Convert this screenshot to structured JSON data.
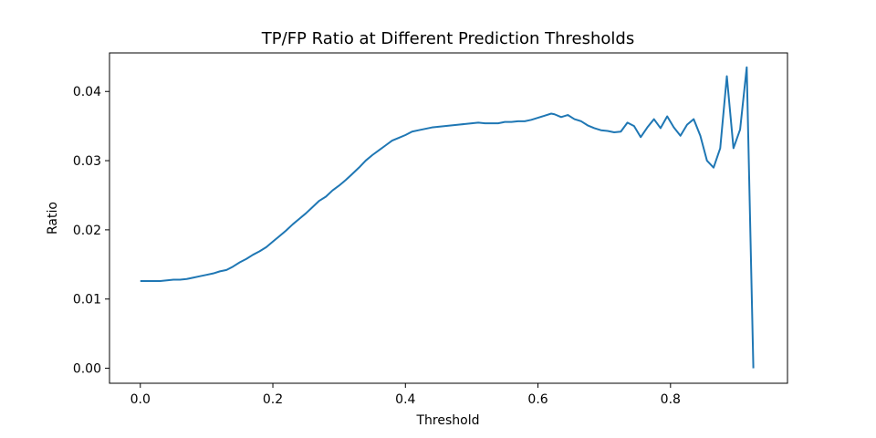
{
  "chart_data": {
    "type": "line",
    "title": "TP/FP Ratio at Different Prediction Thresholds",
    "xlabel": "Threshold",
    "ylabel": "Ratio",
    "xlim": [
      -0.0465,
      0.9765
    ],
    "ylim": [
      -0.00217,
      0.04557
    ],
    "xticks": [
      0.0,
      0.2,
      0.4,
      0.6,
      0.8
    ],
    "xtick_labels": [
      "0.0",
      "0.2",
      "0.4",
      "0.6",
      "0.8"
    ],
    "yticks": [
      0.0,
      0.01,
      0.02,
      0.03,
      0.04
    ],
    "ytick_labels": [
      "0.00",
      "0.01",
      "0.02",
      "0.03",
      "0.04"
    ],
    "grid": false,
    "legend": "none",
    "colors": {
      "line": "#1f77b4",
      "axes": "#000000",
      "background": "#ffffff"
    },
    "series": [
      {
        "values_x": [
          0.0,
          0.01,
          0.02,
          0.03,
          0.04,
          0.05,
          0.06,
          0.07,
          0.08,
          0.09,
          0.1,
          0.11,
          0.12,
          0.13,
          0.14,
          0.15,
          0.16,
          0.17,
          0.18,
          0.19,
          0.2,
          0.21,
          0.22,
          0.23,
          0.24,
          0.25,
          0.26,
          0.27,
          0.28,
          0.29,
          0.3,
          0.31,
          0.32,
          0.33,
          0.34,
          0.35,
          0.36,
          0.37,
          0.38,
          0.39,
          0.4,
          0.41,
          0.42,
          0.43,
          0.44,
          0.45,
          0.46,
          0.47,
          0.48,
          0.49,
          0.5,
          0.51,
          0.52,
          0.53,
          0.54,
          0.55,
          0.56,
          0.57,
          0.58,
          0.59,
          0.6,
          0.61,
          0.62,
          0.625,
          0.635,
          0.645,
          0.655,
          0.665,
          0.675,
          0.685,
          0.695,
          0.705,
          0.715,
          0.725,
          0.735,
          0.745,
          0.755,
          0.765,
          0.775,
          0.785,
          0.795,
          0.805,
          0.815,
          0.825,
          0.835,
          0.845,
          0.855,
          0.865,
          0.875,
          0.885,
          0.895,
          0.905,
          0.915,
          0.925
        ],
        "values_y": [
          0.0126,
          0.0126,
          0.0126,
          0.0126,
          0.0127,
          0.0128,
          0.0128,
          0.0129,
          0.0131,
          0.0133,
          0.0135,
          0.0137,
          0.014,
          0.0142,
          0.0147,
          0.0153,
          0.0158,
          0.0164,
          0.0169,
          0.0175,
          0.0183,
          0.0191,
          0.0199,
          0.0208,
          0.0216,
          0.0224,
          0.0233,
          0.0242,
          0.0248,
          0.0257,
          0.0264,
          0.0272,
          0.0281,
          0.029,
          0.03,
          0.0308,
          0.0315,
          0.0322,
          0.0329,
          0.0333,
          0.0337,
          0.0342,
          0.0344,
          0.0346,
          0.0348,
          0.0349,
          0.035,
          0.0351,
          0.0352,
          0.0353,
          0.0354,
          0.0355,
          0.0354,
          0.0354,
          0.0354,
          0.0356,
          0.0356,
          0.0357,
          0.0357,
          0.0359,
          0.0362,
          0.0365,
          0.0368,
          0.0367,
          0.0363,
          0.0366,
          0.036,
          0.0357,
          0.0351,
          0.0347,
          0.0344,
          0.0343,
          0.0341,
          0.0342,
          0.0355,
          0.035,
          0.0334,
          0.0348,
          0.036,
          0.0347,
          0.0364,
          0.0348,
          0.0336,
          0.0352,
          0.036,
          0.0336,
          0.03,
          0.029,
          0.0318,
          0.0422,
          0.0318,
          0.0345,
          0.0435,
          0.0
        ]
      }
    ]
  }
}
